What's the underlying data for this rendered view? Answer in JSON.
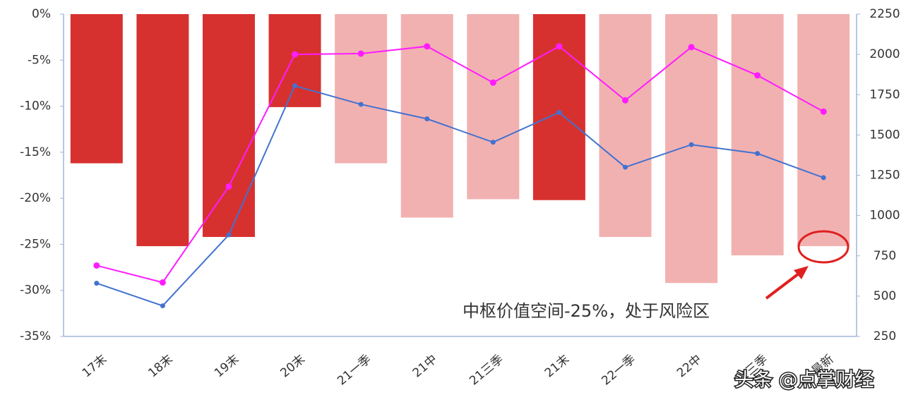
{
  "chart_data": {
    "type": "combo",
    "categories": [
      "17末",
      "18末",
      "19末",
      "20末",
      "21一季",
      "21中",
      "21三季",
      "21末",
      "22一季",
      "22中",
      "22三季",
      "最新"
    ],
    "series": [
      {
        "type": "bar",
        "colors": [
          "#d7312f",
          "#d7312f",
          "#d7312f",
          "#d7312f",
          "#f2b1b1",
          "#f2b1b1",
          "#f2b1b1",
          "#d7312f",
          "#f2b1b1",
          "#f2b1b1",
          "#f2b1b1",
          "#f2b1b1"
        ],
        "values": [
          -16.2,
          -25.2,
          -24.2,
          -10.1,
          -16.2,
          -22.1,
          -20.1,
          -20.2,
          -24.2,
          -29.2,
          -26.2,
          -25.2
        ]
      },
      {
        "type": "line",
        "axis": "y2",
        "color": "#ff1cff",
        "values": [
          690,
          585,
          1180,
          2000,
          2005,
          2050,
          1825,
          2050,
          1715,
          2045,
          1870,
          1645
        ]
      },
      {
        "type": "line",
        "axis": "y2",
        "color": "#4272d0",
        "values": [
          580,
          440,
          880,
          1805,
          1690,
          1600,
          1455,
          1640,
          1300,
          1440,
          1385,
          1235
        ]
      }
    ],
    "ylim": [
      -35,
      0
    ],
    "yticks": [
      {
        "value": 0,
        "label": "0%"
      },
      {
        "value": -5,
        "label": "-5%"
      },
      {
        "value": -10,
        "label": "-10%"
      },
      {
        "value": -15,
        "label": "-15%"
      },
      {
        "value": -20,
        "label": "-20%"
      },
      {
        "value": -25,
        "label": "-25%"
      },
      {
        "value": -30,
        "label": "-30%"
      },
      {
        "value": -35,
        "label": "-35%"
      }
    ],
    "y2lim": [
      250,
      2250
    ],
    "y2ticks": [
      2250,
      2000,
      1750,
      1500,
      1250,
      1000,
      750,
      500,
      250
    ],
    "annotation": "中枢价值空间-25%，处于风险区",
    "watermark": "头条 @点掌财经"
  }
}
